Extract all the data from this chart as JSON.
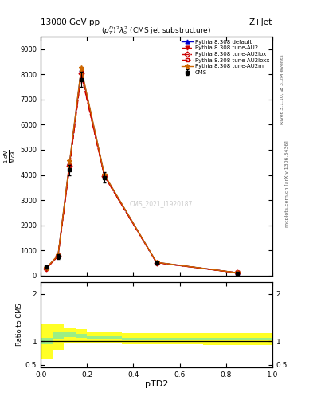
{
  "title_top": "13000 GeV pp",
  "title_right": "Z+Jet",
  "plot_title": "$(p_T^D)^2\\lambda_0^2$ (CMS jet substructure)",
  "xlabel": "pTD2",
  "ylabel_ratio": "Ratio to CMS",
  "right_label_top": "Rivet 3.1.10, ≥ 3.2M events",
  "right_label_bottom": "mcplots.cern.ch [arXiv:1306.3436]",
  "watermark": "CMS_2021_I1920187",
  "x_data": [
    0.025,
    0.075,
    0.125,
    0.175,
    0.275,
    0.5,
    0.85
  ],
  "cms_y": [
    350,
    750,
    4200,
    7800,
    3900,
    500,
    100
  ],
  "cms_err": [
    60,
    100,
    200,
    300,
    200,
    60,
    20
  ],
  "pythia_default_y": [
    300,
    800,
    4500,
    8200,
    4000,
    520,
    105
  ],
  "pythia_au2_y": [
    280,
    770,
    4350,
    8000,
    3950,
    510,
    103
  ],
  "pythia_au2lox_y": [
    285,
    775,
    4380,
    8050,
    3960,
    512,
    104
  ],
  "pythia_au2loxx_y": [
    290,
    778,
    4400,
    8100,
    3970,
    515,
    104
  ],
  "pythia_au2m_y": [
    310,
    810,
    4550,
    8250,
    4020,
    525,
    107
  ],
  "color_cms": "#000000",
  "color_default": "#0000cc",
  "color_au2": "#cc0000",
  "color_au2lox": "#cc0000",
  "color_au2loxx": "#cc0000",
  "color_au2m": "#cc6600",
  "ylim_main": [
    0,
    9500
  ],
  "ylim_ratio": [
    0.45,
    2.25
  ],
  "yticks_main": [
    0,
    1000,
    2000,
    3000,
    4000,
    5000,
    6000,
    7000,
    8000,
    9000
  ],
  "xlim": [
    0.0,
    1.0
  ],
  "bin_edges": [
    0.0,
    0.05,
    0.1,
    0.15,
    0.2,
    0.35,
    0.7,
    1.0
  ],
  "yellow_lo": [
    0.62,
    0.82,
    0.96,
    0.97,
    0.95,
    0.94,
    0.92
  ],
  "yellow_hi": [
    1.38,
    1.35,
    1.28,
    1.25,
    1.2,
    1.17,
    1.17
  ],
  "green_lo": [
    0.93,
    1.05,
    1.09,
    1.07,
    1.04,
    1.02,
    1.02
  ],
  "green_hi": [
    1.07,
    1.18,
    1.18,
    1.15,
    1.1,
    1.07,
    1.07
  ]
}
